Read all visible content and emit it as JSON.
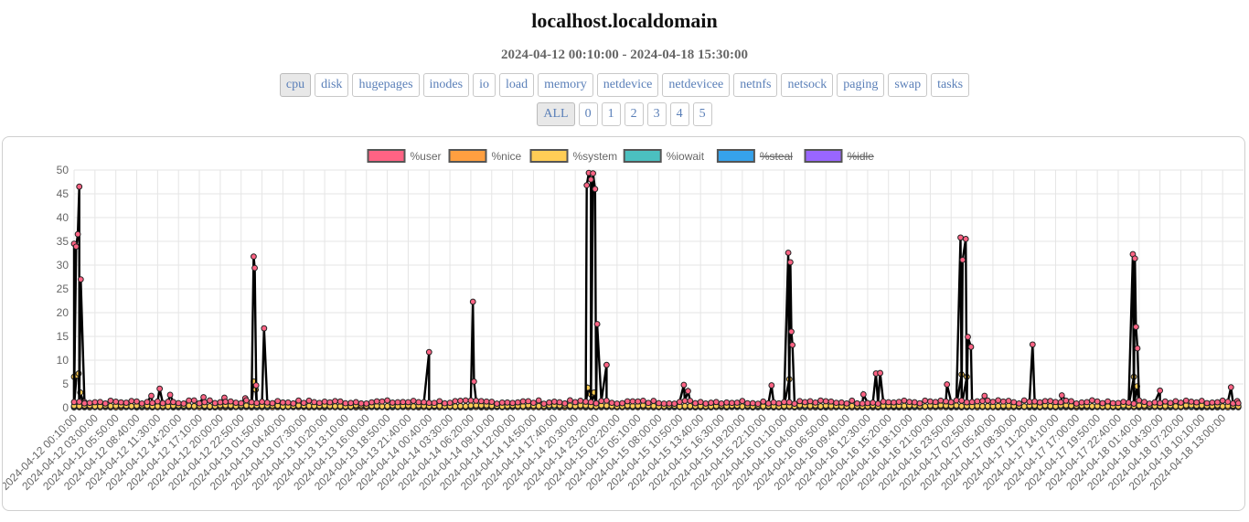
{
  "header": {
    "hostname": "localhost.localdomain",
    "date_range": "2024-04-12 00:10:00 - 2024-04-18 15:30:00"
  },
  "tabs": [
    {
      "label": "cpu",
      "active": true
    },
    {
      "label": "disk",
      "active": false
    },
    {
      "label": "hugepages",
      "active": false
    },
    {
      "label": "inodes",
      "active": false
    },
    {
      "label": "io",
      "active": false
    },
    {
      "label": "load",
      "active": false
    },
    {
      "label": "memory",
      "active": false
    },
    {
      "label": "netdevice",
      "active": false
    },
    {
      "label": "netdevicee",
      "active": false
    },
    {
      "label": "netnfs",
      "active": false
    },
    {
      "label": "netsock",
      "active": false
    },
    {
      "label": "paging",
      "active": false
    },
    {
      "label": "swap",
      "active": false
    },
    {
      "label": "tasks",
      "active": false
    }
  ],
  "cpu_buttons": [
    {
      "label": "ALL",
      "active": true
    },
    {
      "label": "0",
      "active": false
    },
    {
      "label": "1",
      "active": false
    },
    {
      "label": "2",
      "active": false
    },
    {
      "label": "3",
      "active": false
    },
    {
      "label": "4",
      "active": false
    },
    {
      "label": "5",
      "active": false
    }
  ],
  "chart_data": {
    "type": "line",
    "title": "",
    "xlabel": "",
    "ylabel": "",
    "ylim": [
      0,
      50
    ],
    "yticks": [
      0,
      5,
      10,
      15,
      20,
      25,
      30,
      35,
      40,
      45,
      50
    ],
    "grid": true,
    "legend_position": "top",
    "x_tick_labels": [
      "2024-04-12 00:10:00",
      "2024-04-12 03:00:00",
      "2024-04-12 05:50:00",
      "2024-04-12 08:40:00",
      "2024-04-12 11:30:00",
      "2024-04-12 14:20:00",
      "2024-04-12 17:10:00",
      "2024-04-12 20:00:00",
      "2024-04-12 22:50:00",
      "2024-04-13 01:50:00",
      "2024-04-13 04:40:00",
      "2024-04-13 07:30:00",
      "2024-04-13 10:20:00",
      "2024-04-13 13:10:00",
      "2024-04-13 16:00:00",
      "2024-04-13 18:50:00",
      "2024-04-13 21:40:00",
      "2024-04-14 00:40:00",
      "2024-04-14 03:30:00",
      "2024-04-14 06:20:00",
      "2024-04-14 09:10:00",
      "2024-04-14 12:00:00",
      "2024-04-14 14:50:00",
      "2024-04-14 17:40:00",
      "2024-04-14 20:30:00",
      "2024-04-14 23:20:00",
      "2024-04-15 02:20:00",
      "2024-04-15 05:10:00",
      "2024-04-15 08:00:00",
      "2024-04-15 10:50:00",
      "2024-04-15 13:40:00",
      "2024-04-15 16:30:00",
      "2024-04-15 19:20:00",
      "2024-04-15 22:10:00",
      "2024-04-16 01:10:00",
      "2024-04-16 04:00:00",
      "2024-04-16 06:50:00",
      "2024-04-16 09:40:00",
      "2024-04-16 12:30:00",
      "2024-04-16 15:20:00",
      "2024-04-16 18:10:00",
      "2024-04-16 21:00:00",
      "2024-04-16 23:50:00",
      "2024-04-17 02:50:00",
      "2024-04-17 05:40:00",
      "2024-04-17 08:30:00",
      "2024-04-17 11:20:00",
      "2024-04-17 14:10:00",
      "2024-04-17 17:00:00",
      "2024-04-17 19:50:00",
      "2024-04-17 22:40:00",
      "2024-04-18 01:40:00",
      "2024-04-18 04:30:00",
      "2024-04-18 07:20:00",
      "2024-04-18 10:10:00",
      "2024-04-18 13:00:00"
    ],
    "x_range": [
      0,
      56
    ],
    "series": [
      {
        "name": "%user",
        "color": "#ff6384",
        "hidden": false,
        "baseline": 1.2,
        "points": [
          [
            0.0,
            34.5
          ],
          [
            0.1,
            33.9
          ],
          [
            0.18,
            36.5
          ],
          [
            0.25,
            46.5
          ],
          [
            0.32,
            27.0
          ],
          [
            0.5,
            1.2
          ],
          [
            3.7,
            2.5
          ],
          [
            4.1,
            4.0
          ],
          [
            4.6,
            2.7
          ],
          [
            6.2,
            2.2
          ],
          [
            7.2,
            2.1
          ],
          [
            8.2,
            2.0
          ],
          [
            8.6,
            31.8
          ],
          [
            8.65,
            29.4
          ],
          [
            8.72,
            4.7
          ],
          [
            9.1,
            16.7
          ],
          [
            17.0,
            11.7
          ],
          [
            19.1,
            22.3
          ],
          [
            19.15,
            5.5
          ],
          [
            24.55,
            46.8
          ],
          [
            24.65,
            49.4
          ],
          [
            24.75,
            48.0
          ],
          [
            24.85,
            49.3
          ],
          [
            24.95,
            46.0
          ],
          [
            25.05,
            17.6
          ],
          [
            25.5,
            9.0
          ],
          [
            29.2,
            4.8
          ],
          [
            29.4,
            3.5
          ],
          [
            33.4,
            4.7
          ],
          [
            34.2,
            32.6
          ],
          [
            34.3,
            30.6
          ],
          [
            34.35,
            16.0
          ],
          [
            34.4,
            13.2
          ],
          [
            37.8,
            2.8
          ],
          [
            38.4,
            7.2
          ],
          [
            38.6,
            7.3
          ],
          [
            41.8,
            4.9
          ],
          [
            42.45,
            35.8
          ],
          [
            42.55,
            31.1
          ],
          [
            42.7,
            35.5
          ],
          [
            42.8,
            14.9
          ],
          [
            42.95,
            12.8
          ],
          [
            43.6,
            2.5
          ],
          [
            45.9,
            13.3
          ],
          [
            47.3,
            2.6
          ],
          [
            50.7,
            32.3
          ],
          [
            50.8,
            31.4
          ],
          [
            50.85,
            17.0
          ],
          [
            50.92,
            12.5
          ],
          [
            52.0,
            3.6
          ],
          [
            55.4,
            4.3
          ],
          [
            55.7,
            1.4
          ]
        ]
      },
      {
        "name": "%nice",
        "color": "#ff9f40",
        "hidden": false,
        "baseline": 0.1,
        "points": []
      },
      {
        "name": "%system",
        "color": "#ffcd56",
        "hidden": false,
        "baseline": 0.4,
        "points": [
          [
            0.0,
            6.5
          ],
          [
            0.12,
            6.8
          ],
          [
            0.22,
            7.2
          ],
          [
            0.3,
            3.2
          ],
          [
            0.5,
            0.4
          ],
          [
            8.6,
            5.5
          ],
          [
            8.7,
            3.8
          ],
          [
            24.6,
            4.2
          ],
          [
            24.75,
            2.8
          ],
          [
            24.9,
            3.2
          ],
          [
            34.25,
            6.0
          ],
          [
            42.5,
            7.0
          ],
          [
            42.75,
            6.5
          ],
          [
            50.75,
            6.5
          ],
          [
            50.9,
            4.5
          ]
        ]
      },
      {
        "name": "%iowait",
        "color": "#4bc0c0",
        "hidden": false,
        "baseline": 0.3,
        "points": [
          [
            0.05,
            0.8
          ]
        ]
      },
      {
        "name": "%steal",
        "color": "#36a2eb",
        "hidden": true,
        "baseline": 0.0,
        "points": []
      },
      {
        "name": "%idle",
        "color": "#9966ff",
        "hidden": true,
        "baseline": 0.0,
        "points": []
      }
    ]
  }
}
